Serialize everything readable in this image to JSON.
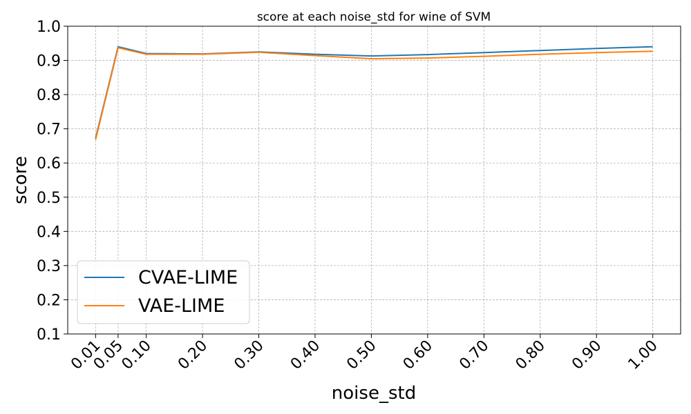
{
  "chart_data": {
    "type": "line",
    "title": "score at each noise_std for wine of SVM",
    "xlabel": "noise_std",
    "ylabel": "score",
    "x": [
      0.01,
      0.05,
      0.1,
      0.2,
      0.3,
      0.4,
      0.5,
      0.6,
      0.7,
      0.8,
      0.9,
      1.0
    ],
    "x_tick_labels": [
      "0.01",
      "0.05",
      "0.10",
      "0.20",
      "0.30",
      "0.40",
      "0.50",
      "0.60",
      "0.70",
      "0.80",
      "0.90",
      "1.00"
    ],
    "ylim": [
      0.1,
      1.0
    ],
    "y_ticks": [
      0.1,
      0.2,
      0.3,
      0.4,
      0.5,
      0.6,
      0.7,
      0.8,
      0.9,
      1.0
    ],
    "y_tick_labels": [
      "0.1",
      "0.2",
      "0.3",
      "0.4",
      "0.5",
      "0.6",
      "0.7",
      "0.8",
      "0.9",
      "1.0"
    ],
    "grid": true,
    "legend_position": "lower-left",
    "series": [
      {
        "name": "CVAE-LIME",
        "color": "#1f77b4",
        "values": [
          0.672,
          0.94,
          0.92,
          0.919,
          0.925,
          0.918,
          0.913,
          0.917,
          0.923,
          0.929,
          0.935,
          0.94
        ]
      },
      {
        "name": "VAE-LIME",
        "color": "#ff7f0e",
        "values": [
          0.668,
          0.937,
          0.918,
          0.918,
          0.924,
          0.914,
          0.905,
          0.907,
          0.912,
          0.918,
          0.923,
          0.927
        ]
      }
    ]
  }
}
